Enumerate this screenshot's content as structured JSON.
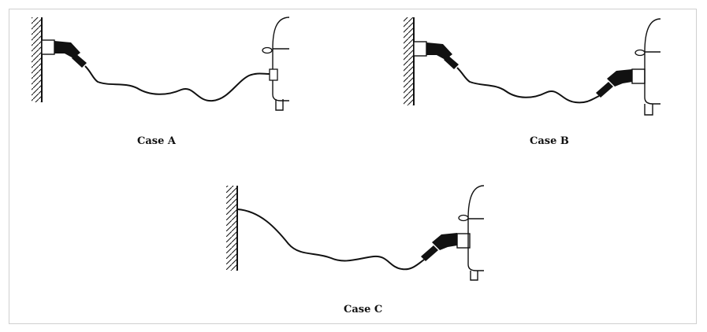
{
  "cases": [
    {
      "label": "Case A"
    },
    {
      "label": "Case B"
    },
    {
      "label": "Case C"
    }
  ],
  "icons": [
    "wall-icon",
    "wall-socket-icon",
    "charging-plug-icon",
    "charging-cable-icon",
    "vehicle-icon",
    "vehicle-inlet-icon"
  ],
  "colors": {
    "stroke": "#111111",
    "frame": "#cfcfcf",
    "background": "#ffffff"
  }
}
